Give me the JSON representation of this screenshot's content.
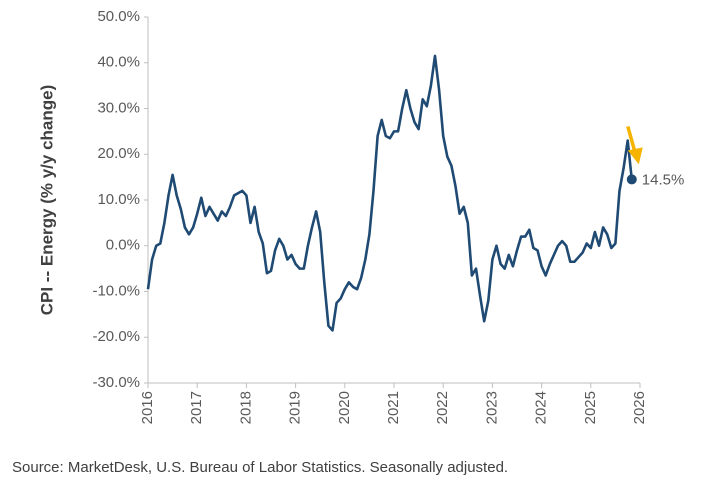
{
  "chart_data": {
    "type": "line",
    "y_label": "CPI -- Energy (% y/y change)",
    "source": "Source: MarketDesk, U.S. Bureau of Labor Statistics. Seasonally adjusted.",
    "x": [
      2016,
      2016.083,
      2016.167,
      2016.25,
      2016.333,
      2016.417,
      2016.5,
      2016.583,
      2016.667,
      2016.75,
      2016.833,
      2016.917,
      2017,
      2017.083,
      2017.167,
      2017.25,
      2017.333,
      2017.417,
      2017.5,
      2017.583,
      2017.667,
      2017.75,
      2017.833,
      2017.917,
      2018,
      2018.083,
      2018.167,
      2018.25,
      2018.333,
      2018.417,
      2018.5,
      2018.583,
      2018.667,
      2018.75,
      2018.833,
      2018.917,
      2019,
      2019.083,
      2019.167,
      2019.25,
      2019.333,
      2019.417,
      2019.5,
      2019.583,
      2019.667,
      2019.75,
      2019.833,
      2019.917,
      2020,
      2020.083,
      2020.167,
      2020.25,
      2020.333,
      2020.417,
      2020.5,
      2020.583,
      2020.667,
      2020.75,
      2020.833,
      2020.917,
      2021,
      2021.083,
      2021.167,
      2021.25,
      2021.333,
      2021.417,
      2021.5,
      2021.583,
      2021.667,
      2021.75,
      2021.833,
      2021.917,
      2022,
      2022.083,
      2022.167,
      2022.25,
      2022.333,
      2022.417,
      2022.5,
      2022.583,
      2022.667,
      2022.75,
      2022.833,
      2022.917,
      2023,
      2023.083,
      2023.167,
      2023.25,
      2023.333,
      2023.417,
      2023.5,
      2023.583,
      2023.667,
      2023.75,
      2023.833,
      2023.917,
      2024,
      2024.083,
      2024.167,
      2024.25,
      2024.333,
      2024.417,
      2024.5,
      2024.583,
      2024.667,
      2024.75,
      2024.833,
      2024.917,
      2025,
      2025.083,
      2025.167,
      2025.25,
      2025.333,
      2025.417,
      2025.5,
      2025.583,
      2025.667,
      2025.75,
      2025.833
    ],
    "series": [
      {
        "color": "#1f4a73",
        "values": [
          -9.5,
          -3,
          0,
          0.5,
          5,
          11,
          15.5,
          11,
          8,
          4,
          2.5,
          4,
          7,
          10.5,
          6.5,
          8.5,
          7,
          5.5,
          7.5,
          6.5,
          8.5,
          11,
          11.5,
          12,
          11,
          5,
          8.5,
          3,
          0.5,
          -6,
          -5.5,
          -1,
          1.5,
          0,
          -3,
          -2,
          -4,
          -5,
          -5,
          0,
          4,
          7.5,
          3,
          -8,
          -17.5,
          -18.5,
          -12.5,
          -11.5,
          -9.5,
          -8,
          -9,
          -9.5,
          -7,
          -3,
          2.5,
          12,
          24,
          27.5,
          24,
          23.5,
          25,
          25,
          30,
          34,
          30,
          27,
          25.5,
          32,
          30.5,
          35,
          41.5,
          34,
          24,
          19.5,
          17.5,
          13,
          7,
          8.5,
          5,
          -6.5,
          -5,
          -11,
          -16.5,
          -12,
          -3,
          0,
          -4,
          -5,
          -2,
          -4.5,
          -1,
          2,
          2,
          3.5,
          -0.5,
          -1,
          -4.5,
          -6.5,
          -4,
          -2,
          0,
          1,
          0,
          -3.5,
          -3.5,
          -2.5,
          -1.5,
          0.5,
          -0.5,
          3,
          0,
          4,
          2.5,
          -0.5,
          0.5,
          12,
          17,
          23,
          14.5
        ]
      }
    ],
    "annotation": {
      "text": "14.5%",
      "arrow_color": "#f5b400"
    },
    "xlim": [
      2016,
      2026
    ],
    "xticks": [
      2016,
      2017,
      2018,
      2019,
      2020,
      2021,
      2022,
      2023,
      2024,
      2025,
      2026
    ],
    "ylim": [
      -30,
      50
    ],
    "yticks": [
      {
        "value": -30,
        "label": "-30.0%"
      },
      {
        "value": -20,
        "label": "-20.0%"
      },
      {
        "value": -10,
        "label": "-10.0%"
      },
      {
        "value": 0,
        "label": "0.0%"
      },
      {
        "value": 10,
        "label": "10.0%"
      },
      {
        "value": 20,
        "label": "20.0%"
      },
      {
        "value": 30,
        "label": "30.0%"
      },
      {
        "value": 40,
        "label": "40.0%"
      },
      {
        "value": 50,
        "label": "50.0%"
      }
    ],
    "grid": false
  }
}
